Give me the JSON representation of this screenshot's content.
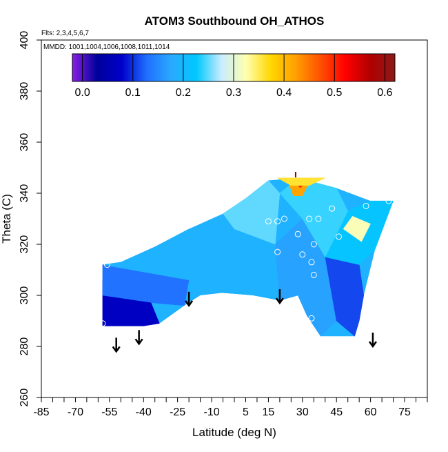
{
  "chart_data": {
    "type": "heatmap",
    "title": "ATOM3 Southbound OH_ATHOS",
    "annotations": {
      "flights": "Flts: 2,3,4,5,6,7",
      "dates": "MMDD: 1001,1004,1006,1008,1011,1014"
    },
    "xlabel": "Latitude (deg N)",
    "ylabel": "Theta (C)",
    "xlim": [
      -85,
      85
    ],
    "ylim": [
      260,
      400
    ],
    "x_ticks": [
      -85,
      -70,
      -55,
      -40,
      -25,
      -10,
      5,
      15,
      30,
      45,
      60,
      75
    ],
    "x_tick_labels": [
      "-85",
      "-70",
      "-55",
      "-40",
      "-25",
      "-10",
      "5",
      "15",
      "30",
      "45",
      "60",
      "75"
    ],
    "y_ticks": [
      260,
      280,
      300,
      320,
      340,
      360,
      380,
      400
    ],
    "y_tick_labels": [
      "260",
      "280",
      "300",
      "320",
      "340",
      "360",
      "380",
      "400"
    ],
    "colorbar": {
      "range": [
        -0.02,
        0.62
      ],
      "ticks": [
        0.0,
        0.1,
        0.2,
        0.3,
        0.4,
        0.5,
        0.6
      ],
      "tick_labels": [
        "0.0",
        "0.1",
        "0.2",
        "0.3",
        "0.4",
        "0.5",
        "0.6"
      ],
      "colors": [
        "#8a1fe6",
        "#000099",
        "#0000cc",
        "#1f6fff",
        "#2aaaff",
        "#00c8ff",
        "#c8ecff",
        "#ffffb0",
        "#ffd700",
        "#ffa000",
        "#ff5000",
        "#ff0000",
        "#b20000",
        "#8b1a1a"
      ]
    },
    "region_outline": [
      [
        -58,
        288
      ],
      [
        -58,
        312
      ],
      [
        -50,
        313
      ],
      [
        -35,
        319
      ],
      [
        -20,
        326
      ],
      [
        -5,
        332
      ],
      [
        5,
        338
      ],
      [
        15,
        345
      ],
      [
        28,
        346
      ],
      [
        45,
        342
      ],
      [
        60,
        337
      ],
      [
        70,
        337
      ],
      [
        62,
        318
      ],
      [
        57,
        300
      ],
      [
        55,
        290
      ],
      [
        53,
        284
      ],
      [
        38,
        284
      ],
      [
        32,
        292
      ],
      [
        28,
        300
      ],
      [
        20,
        298
      ],
      [
        8,
        300
      ],
      [
        -5,
        301
      ],
      [
        -15,
        300
      ],
      [
        -22,
        296
      ],
      [
        -33,
        289
      ],
      [
        -40,
        288
      ]
    ],
    "value_regions": [
      {
        "polygon": [
          [
            -58,
            288
          ],
          [
            -40,
            288
          ],
          [
            -33,
            289
          ],
          [
            -38,
            300
          ],
          [
            -58,
            306
          ]
        ],
        "value": 0.07
      },
      {
        "polygon": [
          [
            -58,
            300
          ],
          [
            -35,
            297
          ],
          [
            -22,
            296
          ],
          [
            -20,
            306
          ],
          [
            -40,
            310
          ],
          [
            -58,
            312
          ]
        ],
        "value": 0.13
      },
      {
        "polygon": [
          [
            -58,
            312
          ],
          [
            -20,
            306
          ],
          [
            -5,
            301
          ],
          [
            10,
            300
          ],
          [
            20,
            298
          ],
          [
            18,
            320
          ],
          [
            0,
            326
          ],
          [
            -20,
            326
          ],
          [
            -35,
            319
          ],
          [
            -50,
            313
          ]
        ],
        "value": 0.19
      },
      {
        "polygon": [
          [
            -5,
            332
          ],
          [
            0,
            326
          ],
          [
            18,
            320
          ],
          [
            20,
            340
          ],
          [
            15,
            345
          ],
          [
            5,
            338
          ]
        ],
        "value": 0.25
      },
      {
        "polygon": [
          [
            18,
            320
          ],
          [
            20,
            298
          ],
          [
            28,
            300
          ],
          [
            32,
            292
          ],
          [
            38,
            284
          ],
          [
            45,
            290
          ],
          [
            40,
            315
          ],
          [
            30,
            330
          ]
        ],
        "value": 0.17
      },
      {
        "polygon": [
          [
            40,
            315
          ],
          [
            45,
            290
          ],
          [
            53,
            284
          ],
          [
            55,
            290
          ],
          [
            57,
            300
          ],
          [
            55,
            312
          ]
        ],
        "value": 0.11
      },
      {
        "polygon": [
          [
            40,
            315
          ],
          [
            55,
            312
          ],
          [
            62,
            318
          ],
          [
            70,
            337
          ],
          [
            60,
            337
          ],
          [
            50,
            333
          ]
        ],
        "value": 0.22
      },
      {
        "polygon": [
          [
            48,
            326
          ],
          [
            56,
            321
          ],
          [
            60,
            328
          ],
          [
            52,
            331
          ]
        ],
        "value": 0.32
      },
      {
        "polygon": [
          [
            20,
            340
          ],
          [
            30,
            330
          ],
          [
            40,
            315
          ],
          [
            50,
            333
          ],
          [
            45,
            342
          ],
          [
            28,
            346
          ]
        ],
        "value": 0.24
      },
      {
        "polygon": [
          [
            23,
            346
          ],
          [
            34,
            346
          ],
          [
            30,
            339
          ],
          [
            26,
            339
          ]
        ],
        "value": 0.42
      },
      {
        "polygon": [
          [
            26,
            346
          ],
          [
            33,
            346
          ],
          [
            29,
            342
          ]
        ],
        "value": 0.5
      },
      {
        "polygon": [
          [
            19,
            346
          ],
          [
            40,
            346
          ],
          [
            33,
            343
          ],
          [
            25,
            343
          ]
        ],
        "value": 0.36
      }
    ],
    "points": [
      [
        -56,
        312
      ],
      [
        -58,
        289
      ],
      [
        15,
        329
      ],
      [
        19,
        329
      ],
      [
        22,
        330
      ],
      [
        19,
        317
      ],
      [
        28,
        324
      ],
      [
        30,
        316
      ],
      [
        33,
        330
      ],
      [
        37,
        330
      ],
      [
        35,
        320
      ],
      [
        34,
        313
      ],
      [
        35,
        308
      ],
      [
        34,
        291
      ],
      [
        43,
        334
      ],
      [
        46,
        323
      ],
      [
        58,
        335
      ],
      [
        68,
        337
      ]
    ],
    "arrows": [
      [
        -52,
        278
      ],
      [
        -42,
        281
      ],
      [
        -20,
        296
      ],
      [
        20,
        297
      ],
      [
        61,
        280
      ]
    ],
    "peak_marker": [
      27,
      347
    ]
  }
}
